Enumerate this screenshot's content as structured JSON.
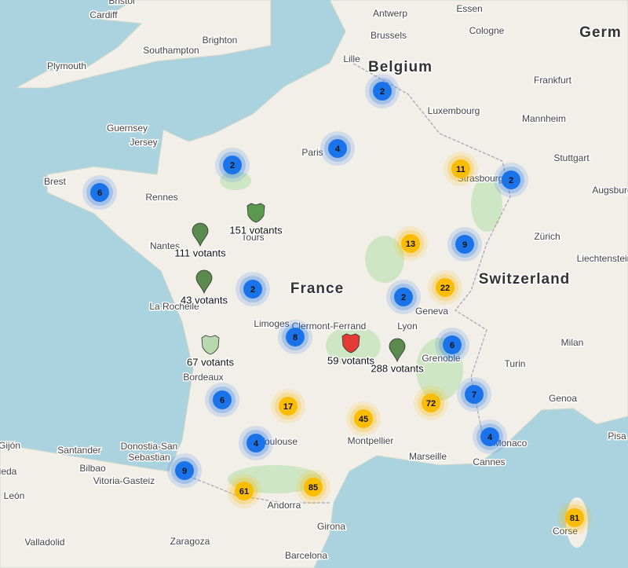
{
  "places": [
    "Bristol",
    "Cardiff",
    "Plymouth",
    "Southampton",
    "Brighton",
    "Antwerp",
    "Essen",
    "Brussels",
    "Cologne",
    "Lille",
    "Frankfurt",
    "Luxembourg",
    "Mannheim",
    "Guernsey",
    "Jersey",
    "Paris",
    "Stuttgart",
    "Strasbourg",
    "Brest",
    "Rennes",
    "Augsburg",
    "Tours",
    "Nantes",
    "Zürich",
    "Liechtenstein",
    "Geneva",
    "La Rochelle",
    "Limoges",
    "Clermont-Ferrand",
    "Lyon",
    "Milan",
    "Grenoble",
    "Turin",
    "Bordeaux",
    "Genoa",
    "Toulouse",
    "Montpellier",
    "Marseille",
    "Monaco",
    "Cannes",
    "Pisa",
    "Gijón",
    "Santander",
    "Donostia-San",
    "Sebastian",
    "Bilbao",
    "Vitoria-Gasteiz",
    "ieda",
    "León",
    "Andorra",
    "Girona",
    "Corse",
    "Valladolid",
    "Zaragoza",
    "Barcelona"
  ],
  "countries": [
    "Germ",
    "Belgium",
    "France",
    "Switzerland"
  ],
  "clusters": [
    {
      "count": 2,
      "color": "#1a73e8"
    },
    {
      "count": 4,
      "color": "#1a73e8"
    },
    {
      "count": 2,
      "color": "#1a73e8"
    },
    {
      "count": 6,
      "color": "#1a73e8"
    },
    {
      "count": 2,
      "color": "#1a73e8"
    },
    {
      "count": 9,
      "color": "#1a73e8"
    },
    {
      "count": 2,
      "color": "#1a73e8"
    },
    {
      "count": 2,
      "color": "#1a73e8"
    },
    {
      "count": 8,
      "color": "#1a73e8"
    },
    {
      "count": 6,
      "color": "#1a73e8"
    },
    {
      "count": 6,
      "color": "#1a73e8"
    },
    {
      "count": 7,
      "color": "#1a73e8"
    },
    {
      "count": 4,
      "color": "#1a73e8"
    },
    {
      "count": 4,
      "color": "#1a73e8"
    },
    {
      "count": 9,
      "color": "#1a73e8"
    },
    {
      "count": 11,
      "color": "#fbbc04"
    },
    {
      "count": 13,
      "color": "#fbbc04"
    },
    {
      "count": 22,
      "color": "#fbbc04"
    },
    {
      "count": 17,
      "color": "#fbbc04"
    },
    {
      "count": 72,
      "color": "#fbbc04"
    },
    {
      "count": 45,
      "color": "#fbbc04"
    },
    {
      "count": 61,
      "color": "#fbbc04"
    },
    {
      "count": 85,
      "color": "#fbbc04"
    },
    {
      "count": 81,
      "color": "#fbbc04"
    }
  ],
  "markers": [
    {
      "label": "151 votants",
      "shape": "shield",
      "color": "#5a9a4e"
    },
    {
      "label": "111 votants",
      "shape": "pin",
      "color": "#5a8a4e"
    },
    {
      "label": "43 votants",
      "shape": "pin",
      "color": "#5a8a4e"
    },
    {
      "label": "67 votants",
      "shape": "shield",
      "color": "#b8d8ad"
    },
    {
      "label": "59 votants",
      "shape": "shield",
      "color": "#e53935"
    },
    {
      "label": "288 votants",
      "shape": "pin",
      "color": "#5a8a4e"
    }
  ]
}
